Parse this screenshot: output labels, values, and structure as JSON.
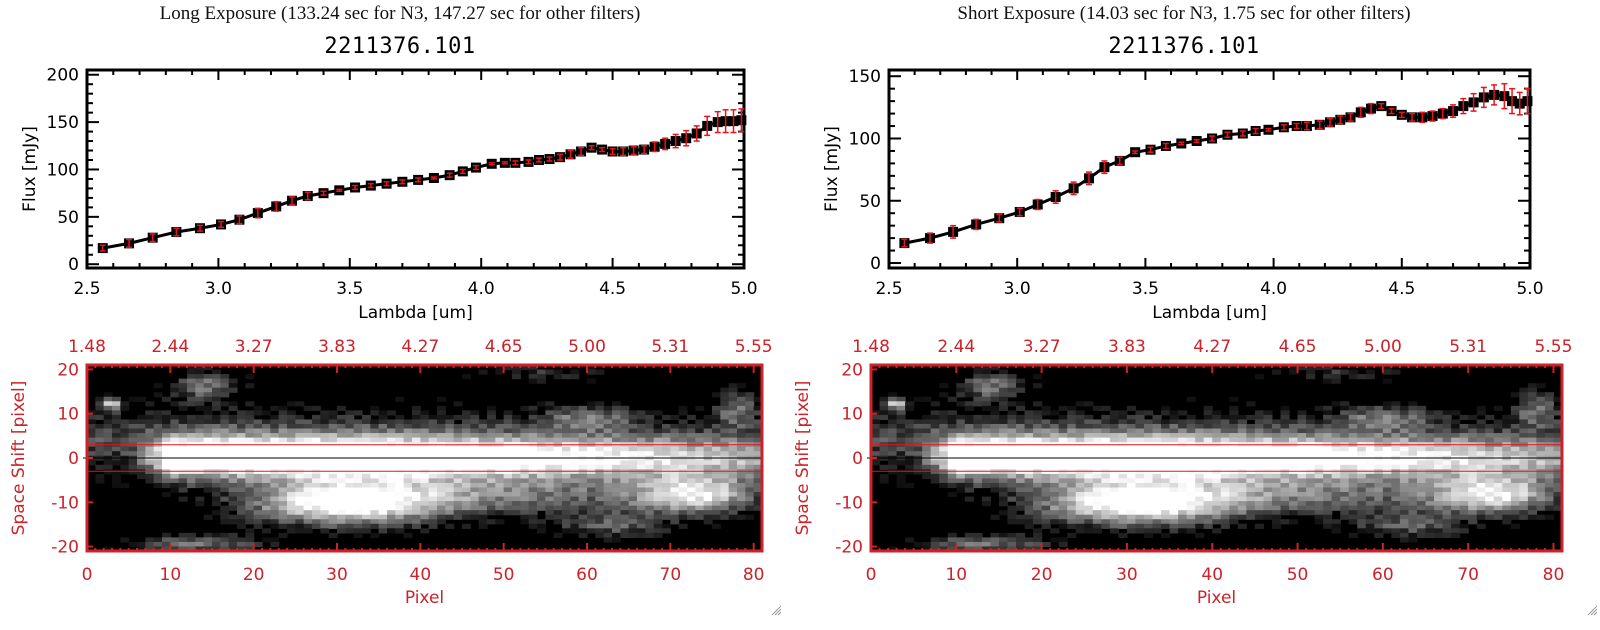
{
  "panels": [
    {
      "id": "long",
      "header": "Long Exposure (133.24 sec for N3, 147.27 sec for other filters)",
      "object_id": "2211376.101"
    },
    {
      "id": "short",
      "header": "Short Exposure (14.03 sec for N3, 1.75 sec for other filters)",
      "object_id": "2211376.101"
    }
  ],
  "colors": {
    "axis": "#000000",
    "marker": "#000000",
    "errorbar": "#e8141c",
    "image_axis": "#cc2229",
    "aperture_line": "#e8141c",
    "center_line": "#000000"
  },
  "chart_data": [
    {
      "type": "line",
      "name": "long-spectrum",
      "title": "2211376.101",
      "xlabel": "Lambda [um]",
      "ylabel": "Flux [mJy]",
      "xlim": [
        2.5,
        5.0
      ],
      "ylim": [
        -4,
        205
      ],
      "xticks": [
        2.5,
        3.0,
        3.5,
        4.0,
        4.5,
        5.0
      ],
      "xtick_labels": [
        "2.5",
        "3.0",
        "3.5",
        "4.0",
        "4.5",
        "5.0"
      ],
      "yticks": [
        0,
        50,
        100,
        150,
        200
      ],
      "ytick_labels": [
        "0",
        "50",
        "100",
        "150",
        "200"
      ],
      "grid": false,
      "x": [
        2.56,
        2.66,
        2.75,
        2.84,
        2.93,
        3.01,
        3.08,
        3.15,
        3.22,
        3.28,
        3.34,
        3.4,
        3.46,
        3.52,
        3.58,
        3.64,
        3.7,
        3.76,
        3.82,
        3.88,
        3.93,
        3.98,
        4.04,
        4.09,
        4.13,
        4.18,
        4.22,
        4.26,
        4.3,
        4.34,
        4.38,
        4.42,
        4.46,
        4.5,
        4.54,
        4.58,
        4.62,
        4.66,
        4.7,
        4.74,
        4.78,
        4.82,
        4.86,
        4.9,
        4.93,
        4.96,
        4.99
      ],
      "y": [
        17,
        22,
        28,
        34,
        38,
        42,
        47,
        54,
        61,
        67,
        72,
        75,
        78,
        81,
        83,
        85,
        87,
        89,
        91,
        94,
        98,
        102,
        106,
        107,
        107,
        108,
        110,
        111,
        113,
        116,
        119,
        123,
        121,
        119,
        119,
        120,
        121,
        124,
        127,
        130,
        133,
        138,
        146,
        150,
        151,
        151,
        152
      ],
      "yerr": [
        3,
        4,
        4,
        4,
        3,
        3,
        4,
        5,
        5,
        4,
        4,
        2,
        1,
        2,
        2,
        2,
        2,
        2,
        1,
        2,
        2,
        2,
        1,
        1,
        2,
        2,
        2,
        2,
        3,
        4,
        4,
        2,
        2,
        3,
        4,
        4,
        4,
        5,
        6,
        7,
        8,
        8,
        10,
        11,
        12,
        12,
        12
      ]
    },
    {
      "type": "line",
      "name": "short-spectrum",
      "title": "2211376.101",
      "xlabel": "Lambda [um]",
      "ylabel": "Flux [mJy]",
      "xlim": [
        2.5,
        5.0
      ],
      "ylim": [
        -4,
        155
      ],
      "xticks": [
        2.5,
        3.0,
        3.5,
        4.0,
        4.5,
        5.0
      ],
      "xtick_labels": [
        "2.5",
        "3.0",
        "3.5",
        "4.0",
        "4.5",
        "5.0"
      ],
      "yticks": [
        0,
        50,
        100,
        150
      ],
      "ytick_labels": [
        "0",
        "50",
        "100",
        "150"
      ],
      "grid": false,
      "x": [
        2.56,
        2.66,
        2.75,
        2.84,
        2.93,
        3.01,
        3.08,
        3.15,
        3.22,
        3.28,
        3.34,
        3.4,
        3.46,
        3.52,
        3.58,
        3.64,
        3.7,
        3.76,
        3.82,
        3.88,
        3.93,
        3.98,
        4.04,
        4.09,
        4.13,
        4.18,
        4.22,
        4.26,
        4.3,
        4.34,
        4.38,
        4.42,
        4.46,
        4.5,
        4.54,
        4.58,
        4.62,
        4.66,
        4.7,
        4.74,
        4.78,
        4.82,
        4.86,
        4.9,
        4.93,
        4.96,
        4.99
      ],
      "y": [
        16,
        20,
        25,
        31,
        36,
        41,
        47,
        53,
        60,
        68,
        77,
        82,
        89,
        91,
        94,
        96,
        98,
        100,
        103,
        104,
        106,
        107,
        109,
        110,
        110,
        111,
        113,
        115,
        117,
        121,
        124,
        126,
        122,
        119,
        117,
        117,
        118,
        120,
        122,
        126,
        129,
        133,
        135,
        134,
        130,
        128,
        130
      ],
      "yerr": [
        3,
        4,
        5,
        4,
        3,
        3,
        4,
        5,
        5,
        5,
        5,
        3,
        1,
        2,
        2,
        1,
        1,
        2,
        2,
        2,
        2,
        1,
        2,
        2,
        3,
        3,
        3,
        3,
        3,
        4,
        4,
        2,
        2,
        2,
        3,
        4,
        4,
        4,
        5,
        6,
        7,
        8,
        8,
        10,
        10,
        9,
        10
      ]
    },
    {
      "type": "heatmap",
      "name": "long-2d-image",
      "xlabel": "Pixel",
      "ylabel": "Space Shift [pixel]",
      "xlim": [
        0,
        81
      ],
      "ylim": [
        -21,
        21
      ],
      "xticks": [
        0,
        10,
        20,
        30,
        40,
        50,
        60,
        70,
        80
      ],
      "xtick_labels": [
        "0",
        "10",
        "20",
        "30",
        "40",
        "50",
        "60",
        "70",
        "80"
      ],
      "top_xticks": [
        0,
        10,
        20,
        30,
        40,
        50,
        60,
        70,
        80
      ],
      "top_xtick_labels": [
        "1.48",
        "2.44",
        "3.27",
        "3.83",
        "4.27",
        "4.65",
        "5.00",
        "5.31",
        "5.55"
      ],
      "yticks": [
        -20,
        -10,
        0,
        10,
        20
      ],
      "ytick_labels": [
        "-20",
        "-10",
        "0",
        "10",
        "20"
      ],
      "aperture_lines": [
        3,
        -3
      ],
      "center_line": 0,
      "features": [
        {
          "x": 40,
          "y": 0,
          "sx": 34,
          "sy": 3.2,
          "amp": 1.0,
          "x0": 9
        },
        {
          "x": 40,
          "y": 4,
          "sx": 40,
          "sy": 5,
          "amp": 0.35,
          "x0": 0
        },
        {
          "x": 31,
          "y": -10,
          "sx": 8,
          "sy": 3.5,
          "amp": 0.9
        },
        {
          "x": 50,
          "y": -8,
          "sx": 18,
          "sy": 3.5,
          "amp": 0.45
        },
        {
          "x": 73,
          "y": -8,
          "sx": 5,
          "sy": 3,
          "amp": 0.7
        },
        {
          "x": 14,
          "y": 16,
          "sx": 3,
          "sy": 2.5,
          "amp": 0.45
        },
        {
          "x": 3,
          "y": 12,
          "sx": 0.8,
          "sy": 1,
          "amp": 0.75
        },
        {
          "x": 13,
          "y": -19,
          "sx": 6,
          "sy": 1.5,
          "amp": 0.45
        },
        {
          "x": 60,
          "y": 9,
          "sx": 4,
          "sy": 2,
          "amp": 0.35
        },
        {
          "x": 78,
          "y": 11,
          "sx": 2,
          "sy": 3,
          "amp": 0.4
        },
        {
          "x": 63,
          "y": -15,
          "sx": 5,
          "sy": 2,
          "amp": 0.35
        },
        {
          "x": 55,
          "y": 19,
          "sx": 6,
          "sy": 1.5,
          "amp": 0.25
        }
      ]
    },
    {
      "type": "heatmap",
      "name": "short-2d-image",
      "xlabel": "Pixel",
      "ylabel": "Space Shift [pixel]",
      "xlim": [
        0,
        81
      ],
      "ylim": [
        -21,
        21
      ],
      "xticks": [
        0,
        10,
        20,
        30,
        40,
        50,
        60,
        70,
        80
      ],
      "xtick_labels": [
        "0",
        "10",
        "20",
        "30",
        "40",
        "50",
        "60",
        "70",
        "80"
      ],
      "top_xticks": [
        0,
        10,
        20,
        30,
        40,
        50,
        60,
        70,
        80
      ],
      "top_xtick_labels": [
        "1.48",
        "2.44",
        "3.27",
        "3.83",
        "4.27",
        "4.65",
        "5.00",
        "5.31",
        "5.55"
      ],
      "yticks": [
        -20,
        -10,
        0,
        10,
        20
      ],
      "ytick_labels": [
        "-20",
        "-10",
        "0",
        "10",
        "20"
      ],
      "aperture_lines": [
        3,
        -3
      ],
      "center_line": 0,
      "features": [
        {
          "x": 40,
          "y": 0,
          "sx": 34,
          "sy": 3.2,
          "amp": 1.0,
          "x0": 9
        },
        {
          "x": 40,
          "y": 4,
          "sx": 40,
          "sy": 5,
          "amp": 0.35,
          "x0": 0
        },
        {
          "x": 31,
          "y": -10,
          "sx": 8,
          "sy": 3.5,
          "amp": 0.9
        },
        {
          "x": 50,
          "y": -8,
          "sx": 18,
          "sy": 3.5,
          "amp": 0.45
        },
        {
          "x": 73,
          "y": -8,
          "sx": 5,
          "sy": 3,
          "amp": 0.7
        },
        {
          "x": 14,
          "y": 16,
          "sx": 3,
          "sy": 2.5,
          "amp": 0.45
        },
        {
          "x": 3,
          "y": 12,
          "sx": 0.8,
          "sy": 1,
          "amp": 0.75
        },
        {
          "x": 13,
          "y": -19,
          "sx": 6,
          "sy": 1.5,
          "amp": 0.45
        },
        {
          "x": 60,
          "y": 9,
          "sx": 4,
          "sy": 2,
          "amp": 0.35
        },
        {
          "x": 78,
          "y": 11,
          "sx": 2,
          "sy": 3,
          "amp": 0.4
        },
        {
          "x": 63,
          "y": -15,
          "sx": 5,
          "sy": 2,
          "amp": 0.35
        },
        {
          "x": 55,
          "y": 19,
          "sx": 6,
          "sy": 1.5,
          "amp": 0.25
        }
      ]
    }
  ]
}
